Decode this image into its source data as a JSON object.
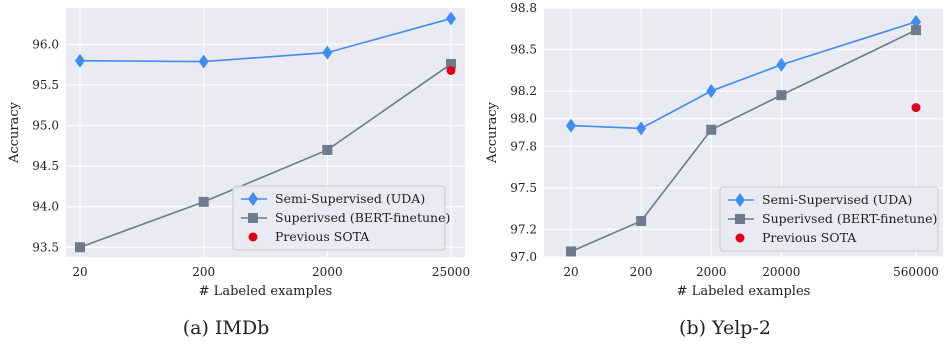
{
  "colors": {
    "panel_bg": "#e9eaf2",
    "grid": "#ffffff",
    "series_uda": "#3d8ef0",
    "series_bert": "#6f7a8a",
    "sota": "#e0001a"
  },
  "chart_data": [
    {
      "type": "line",
      "caption": "(a) IMDb",
      "title": "",
      "xlabel": "# Labeled examples",
      "ylabel": "Accuracy",
      "categories": [
        "20",
        "200",
        "2000",
        "25000"
      ],
      "yticks": [
        "93.5",
        "94.0",
        "94.5",
        "95.0",
        "95.5",
        "96.0"
      ],
      "ylim": [
        93.38,
        96.45
      ],
      "grid": true,
      "legend_position": "lower-right",
      "series": [
        {
          "name": "Semi-Supervised (UDA)",
          "marker": "diamond",
          "values": [
            95.8,
            95.79,
            95.9,
            96.32
          ]
        },
        {
          "name": "Superivsed (BERT-finetune)",
          "marker": "square",
          "values": [
            93.5,
            94.06,
            94.7,
            95.76
          ]
        }
      ],
      "points": [
        {
          "name": "Previous SOTA",
          "marker": "circle",
          "x": "25000",
          "y": 95.68
        }
      ]
    },
    {
      "type": "line",
      "caption": "(b) Yelp-2",
      "title": "",
      "xlabel": "# Labeled examples",
      "ylabel": "Accuracy",
      "categories": [
        "20",
        "200",
        "2000",
        "20000",
        "560000"
      ],
      "x_positions": [
        0,
        1,
        2,
        3,
        4.92
      ],
      "yticks": [
        "97.0",
        "97.2",
        "97.5",
        "97.8",
        "98.0",
        "98.2",
        "98.5",
        "98.8"
      ],
      "ylim": [
        97.0,
        98.8
      ],
      "grid": true,
      "legend_position": "lower-right",
      "series": [
        {
          "name": "Semi-Supervised (UDA)",
          "marker": "diamond",
          "values": [
            97.95,
            97.93,
            98.2,
            98.39,
            98.7
          ]
        },
        {
          "name": "Superivsed (BERT-finetune)",
          "marker": "square",
          "values": [
            97.04,
            97.26,
            97.92,
            98.17,
            98.64
          ]
        }
      ],
      "points": [
        {
          "name": "Previous SOTA",
          "marker": "circle",
          "x": "560000",
          "y": 98.08
        }
      ]
    }
  ]
}
